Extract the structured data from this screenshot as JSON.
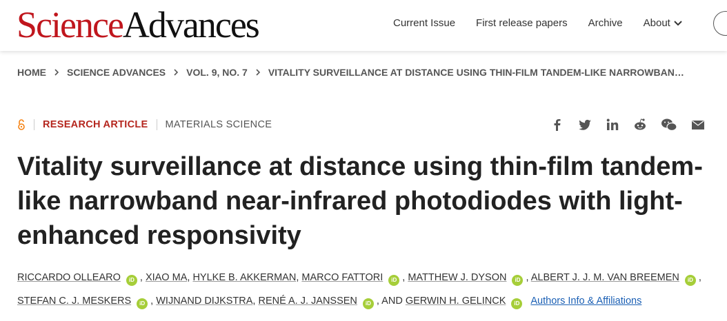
{
  "header": {
    "logo": {
      "part1": "Science",
      "part2": "Advances"
    },
    "nav": [
      "Current Issue",
      "First release papers",
      "Archive",
      "About"
    ]
  },
  "breadcrumb": [
    "HOME",
    "SCIENCE ADVANCES",
    "VOL. 9, NO. 7",
    "VITALITY SURVEILLANCE AT DISTANCE USING THIN-FILM TANDEM-LIKE NARROWBAN…"
  ],
  "article": {
    "type": "RESEARCH ARTICLE",
    "subject": "MATERIALS SCIENCE",
    "title": "Vitality surveillance at distance using thin-film tandem-like narrowband near-infrared photodiodes with light-enhanced responsivity",
    "authors": [
      {
        "name": "RICCARDO OLLEARO",
        "orcid": true
      },
      {
        "name": "XIAO MA",
        "orcid": false
      },
      {
        "name": "HYLKE B. AKKERMAN",
        "orcid": false
      },
      {
        "name": "MARCO FATTORI",
        "orcid": true
      },
      {
        "name": "MATTHEW J. DYSON",
        "orcid": true
      },
      {
        "name": "ALBERT J. J. M. VAN BREEMEN",
        "orcid": true
      },
      {
        "name": "STEFAN C. J. MESKERS",
        "orcid": true
      },
      {
        "name": "WIJNAND DIJKSTRA",
        "orcid": false
      },
      {
        "name": "RENÉ A. J. JANSSEN",
        "orcid": true
      },
      {
        "name": "GERWIN H. GELINCK",
        "orcid": true
      }
    ],
    "separator": ",",
    "and_label": "AND",
    "orcid_label": "iD",
    "affiliations_link": "Authors Info & Affiliations"
  }
}
